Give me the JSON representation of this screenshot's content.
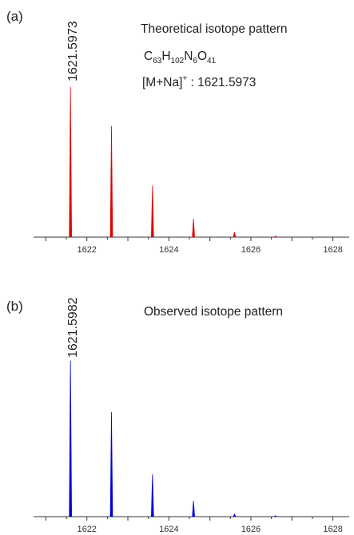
{
  "chart_data": [
    {
      "type": "line",
      "panel_label": "(a)",
      "title": "Theoretical isotope pattern",
      "formula": [
        {
          "text": "C",
          "sub": "63"
        },
        {
          "text": "H",
          "sub": "102"
        },
        {
          "text": "N",
          "sub": "6"
        },
        {
          "text": "O",
          "sub": "41"
        }
      ],
      "ion_prefix": "[M+Na]",
      "ion_charge": "+",
      "ion_value": " : 1621.5973",
      "peak_label": "1621.5973",
      "xlim": [
        1620.7,
        1628.3
      ],
      "xticks": [
        "1622",
        "1624",
        "1626",
        "1628"
      ],
      "color": "#e00000",
      "x": [
        1621.6,
        1622.6,
        1623.6,
        1624.6,
        1625.6,
        1626.6
      ],
      "values": [
        100,
        74,
        34,
        12,
        3.3,
        0.8
      ]
    },
    {
      "type": "line",
      "panel_label": "(b)",
      "title": "Observed isotope pattern",
      "peak_label": "1621.5982",
      "xlim": [
        1620.7,
        1628.3
      ],
      "xticks": [
        "1622",
        "1624",
        "1626",
        "1628"
      ],
      "color": "#0000dd",
      "x": [
        1621.6,
        1622.6,
        1623.6,
        1624.6,
        1625.6,
        1626.6
      ],
      "values": [
        100,
        67,
        27,
        10,
        1.7,
        0.6
      ]
    }
  ]
}
